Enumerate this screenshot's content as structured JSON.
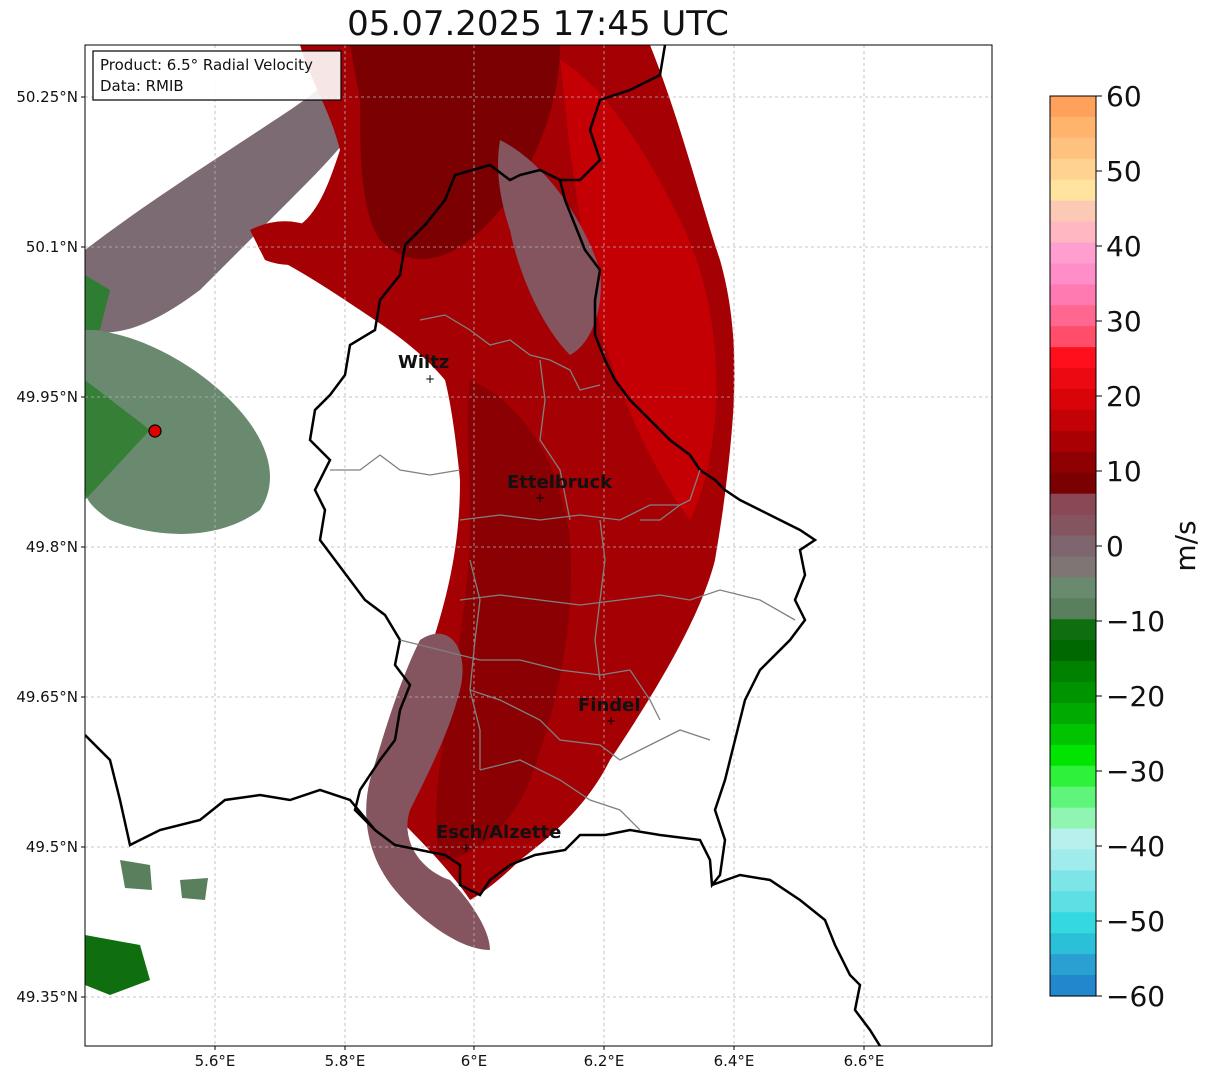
{
  "title": "05.07.2025 17:45 UTC",
  "info": {
    "product": "Product: 6.5° Radial Velocity",
    "source": "Data: RMIB"
  },
  "axes": {
    "lon_ticks": [
      "5.6°E",
      "5.8°E",
      "6°E",
      "6.2°E",
      "6.4°E",
      "6.6°E"
    ],
    "lat_ticks": [
      "50.25°N",
      "50.1°N",
      "49.95°N",
      "49.8°N",
      "49.65°N",
      "49.5°N",
      "49.35°N"
    ]
  },
  "cities": [
    {
      "name": "Wiltz"
    },
    {
      "name": "Ettelbruck"
    },
    {
      "name": "Findel"
    },
    {
      "name": "Esch/Alzette"
    }
  ],
  "colorbar": {
    "unit": "m/s",
    "ticks": [
      "60",
      "50",
      "40",
      "30",
      "20",
      "10",
      "0",
      "−10",
      "−20",
      "−30",
      "−40",
      "−50",
      "−60"
    ],
    "colors": [
      "#ffa15a",
      "#ffb46e",
      "#ffc27e",
      "#ffd38f",
      "#ffe39f",
      "#fcc9b5",
      "#ffb7c1",
      "#ff9fd0",
      "#ff8ec8",
      "#ff7ab0",
      "#ff6690",
      "#ff4d6a",
      "#ff0f1c",
      "#ec0a12",
      "#d80409",
      "#c20205",
      "#a90003",
      "#8f0002",
      "#7a0001",
      "#884955",
      "#84545f",
      "#7f656e",
      "#7f7575",
      "#6a8a70",
      "#5a7f5d",
      "#0f6f0f",
      "#006800",
      "#008200",
      "#009300",
      "#00aa00",
      "#00c400",
      "#00e400",
      "#2ef23a",
      "#5ef57a",
      "#8ff5b0",
      "#b8f0ee",
      "#a0ebec",
      "#7de5e8",
      "#5ddfe4",
      "#33d8e0",
      "#2cc0d8",
      "#2a9fd2",
      "#2287cc"
    ]
  }
}
